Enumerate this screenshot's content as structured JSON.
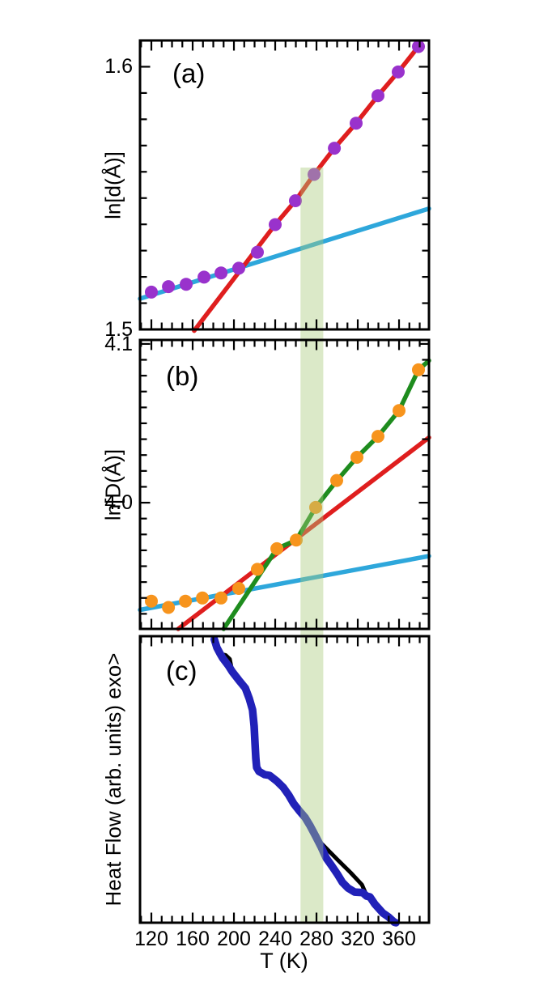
{
  "figure": {
    "xlabel": "T (K)",
    "xlim": [
      109,
      389
    ],
    "x_ticks": {
      "major_values": [
        120,
        160,
        200,
        240,
        280,
        320,
        360
      ],
      "labels": [
        "120",
        "160",
        "200",
        "240",
        "280",
        "320",
        "360"
      ],
      "minor_step": 10
    },
    "highlight_band": {
      "x_range": [
        264.5,
        286.5
      ],
      "color": "#AACB7C",
      "opacity": 0.42,
      "meaning": "transition temperature region highlighted across all panels"
    },
    "colors": {
      "purple_markers": "#9932CC",
      "orange_markers": "#F7941D",
      "red_fit": "#DF1E1E",
      "cyan_fit": "#2EA7DB",
      "green_fit": "#1E8C1E",
      "blue_curve": "#2121B8",
      "black_curve": "#000000",
      "axis": "#000000"
    }
  },
  "chart_data": [
    {
      "panel": "a",
      "panel_label": "(a)",
      "type": "scatter",
      "ylabel": "ln[d(Å)]",
      "xlabel": "T (K)",
      "xlim": [
        109,
        389
      ],
      "ylim": [
        1.5,
        1.61
      ],
      "yticks": {
        "major": [
          {
            "value": 1.5,
            "label": "1.5"
          },
          {
            "value": 1.6,
            "label": "1.6"
          }
        ],
        "minor_step": 0.01
      },
      "series": [
        {
          "name": "low-T-linear-fit",
          "type": "line",
          "color": "#2EA7DB",
          "width": 5.5,
          "points": [
            [
              109,
              1.5117
            ],
            [
              389,
              1.546
            ]
          ]
        },
        {
          "name": "high-T-linear-fit",
          "type": "line",
          "color": "#DF1E1E",
          "width": 5.5,
          "points": [
            [
              161.5,
              1.4995
            ],
            [
              240,
              1.5399
            ],
            [
              259.6,
              1.549
            ],
            [
              277.6,
              1.559
            ],
            [
              297.3,
              1.569
            ],
            [
              318.4,
              1.5785
            ],
            [
              339.6,
              1.589
            ],
            [
              359.2,
              1.598
            ],
            [
              381.5,
              1.609
            ]
          ]
        },
        {
          "name": "d-spacing-data",
          "type": "scatter",
          "color": "#9932CC",
          "marker_radius": 8,
          "points": [
            [
              120,
              1.5142
            ],
            [
              136.5,
              1.5163
            ],
            [
              153.7,
              1.5172
            ],
            [
              171,
              1.5199
            ],
            [
              187.5,
              1.5215
            ],
            [
              204.7,
              1.5233
            ],
            [
              222.7,
              1.5294
            ],
            [
              240,
              1.5399
            ],
            [
              259.6,
              1.549
            ],
            [
              277.6,
              1.559
            ],
            [
              297.3,
              1.569
            ],
            [
              318.4,
              1.5785
            ],
            [
              339.6,
              1.589
            ],
            [
              359.2,
              1.598
            ],
            [
              378.8,
              1.6077
            ]
          ]
        }
      ]
    },
    {
      "panel": "b",
      "panel_label": "(b)",
      "type": "scatter",
      "ylabel": "ln[D(Å)]",
      "xlabel": "T (K)",
      "xlim": [
        109,
        389
      ],
      "ylim": [
        3.9205,
        4.1025
      ],
      "yticks": {
        "major": [
          {
            "value": 4.0,
            "label": "4.0"
          },
          {
            "value": 4.1,
            "label": "4.1"
          }
        ],
        "minor_step": 0.01
      },
      "series": [
        {
          "name": "low-T-linear-fit",
          "type": "line",
          "color": "#2EA7DB",
          "width": 5.5,
          "points": [
            [
              109,
              3.9325
            ],
            [
              389,
              3.9664
            ]
          ]
        },
        {
          "name": "mid-T-linear-fit",
          "type": "line",
          "color": "#DF1E1E",
          "width": 5.5,
          "points": [
            [
              146,
              3.9205
            ],
            [
              389,
              4.041
            ]
          ]
        },
        {
          "name": "high-T-linear-fit",
          "type": "line",
          "color": "#1E8C1E",
          "width": 5.5,
          "points": [
            [
              190,
              3.9205
            ],
            [
              241.6,
              3.971
            ],
            [
              260.4,
              3.9765
            ],
            [
              279.2,
              3.997
            ],
            [
              299.6,
              4.0138
            ],
            [
              319.2,
              4.0286
            ],
            [
              339.6,
              4.0418
            ],
            [
              360,
              4.058
            ],
            [
              378.8,
              4.0837
            ],
            [
              389,
              4.0895
            ]
          ]
        },
        {
          "name": "D-size-data",
          "type": "scatter",
          "color": "#F7941D",
          "marker_radius": 8,
          "points": [
            [
              120,
              3.938
            ],
            [
              136.5,
              3.934
            ],
            [
              153,
              3.938
            ],
            [
              169.5,
              3.94
            ],
            [
              187.5,
              3.94
            ],
            [
              204.7,
              3.946
            ],
            [
              222.7,
              3.958
            ],
            [
              241.6,
              3.971
            ],
            [
              260.4,
              3.9765
            ],
            [
              279.2,
              3.997
            ],
            [
              299.6,
              4.014
            ],
            [
              319.2,
              4.0286
            ],
            [
              339.6,
              4.0418
            ],
            [
              360,
              4.058
            ],
            [
              378.8,
              4.0837
            ]
          ]
        }
      ]
    },
    {
      "panel": "c",
      "panel_label": "(c)",
      "type": "line",
      "ylabel": "Heat Flow (arb. units) exo>",
      "xlabel": "T (K)",
      "xlim": [
        109,
        389
      ],
      "ylim": [
        0,
        1
      ],
      "y_units": "arbitrary; values are fraction of panel height measured from top (exothermic up)",
      "yticks": null,
      "series": [
        {
          "name": "dsc-curve-black",
          "type": "line",
          "color": "#000000",
          "width": 5,
          "points": [
            [
              181,
              0.011
            ],
            [
              183.5,
              0.04
            ],
            [
              186.7,
              0.062
            ],
            [
              192,
              0.066
            ],
            [
              196,
              0.08
            ],
            [
              198.4,
              0.124
            ],
            [
              204.7,
              0.153
            ],
            [
              211,
              0.181
            ],
            [
              214.9,
              0.218
            ],
            [
              218,
              0.257
            ],
            [
              219.6,
              0.314
            ],
            [
              220.4,
              0.37
            ],
            [
              221.2,
              0.427
            ],
            [
              222,
              0.458
            ],
            [
              224.3,
              0.472
            ],
            [
              229.8,
              0.483
            ],
            [
              234.5,
              0.486
            ],
            [
              241.6,
              0.506
            ],
            [
              247.8,
              0.528
            ],
            [
              253.3,
              0.556
            ],
            [
              258,
              0.585
            ],
            [
              263.5,
              0.61
            ],
            [
              269,
              0.633
            ],
            [
              273.7,
              0.661
            ],
            [
              279.2,
              0.698
            ],
            [
              281.6,
              0.712
            ],
            [
              300.4,
              0.78
            ],
            [
              313,
              0.825
            ],
            [
              324,
              0.867
            ],
            [
              328.6,
              0.905
            ],
            [
              331.8,
              0.91
            ],
            [
              336.5,
              0.935
            ],
            [
              344.3,
              0.966
            ],
            [
              349.8,
              0.98
            ],
            [
              355.3,
              0.998
            ]
          ]
        },
        {
          "name": "dsc-curve-blue",
          "type": "line",
          "color": "#2121B8",
          "width": 9.5,
          "points": [
            [
              181,
              0.011
            ],
            [
              183.5,
              0.04
            ],
            [
              186.7,
              0.062
            ],
            [
              189,
              0.076
            ],
            [
              194.5,
              0.102
            ],
            [
              198.4,
              0.124
            ],
            [
              204.7,
              0.153
            ],
            [
              211,
              0.181
            ],
            [
              214.9,
              0.218
            ],
            [
              218,
              0.257
            ],
            [
              219.6,
              0.314
            ],
            [
              220.4,
              0.37
            ],
            [
              221.2,
              0.427
            ],
            [
              222,
              0.458
            ],
            [
              224.3,
              0.472
            ],
            [
              229.8,
              0.483
            ],
            [
              234.5,
              0.486
            ],
            [
              241.6,
              0.506
            ],
            [
              247.8,
              0.528
            ],
            [
              253.3,
              0.556
            ],
            [
              258,
              0.585
            ],
            [
              263.5,
              0.61
            ],
            [
              269,
              0.633
            ],
            [
              273.7,
              0.661
            ],
            [
              279.2,
              0.698
            ],
            [
              284.7,
              0.737
            ],
            [
              289.4,
              0.774
            ],
            [
              294.9,
              0.802
            ],
            [
              300.4,
              0.831
            ],
            [
              305.1,
              0.859
            ],
            [
              310.6,
              0.879
            ],
            [
              316.9,
              0.893
            ],
            [
              324.7,
              0.895
            ],
            [
              328.6,
              0.907
            ],
            [
              331.8,
              0.91
            ],
            [
              336.5,
              0.935
            ],
            [
              344.3,
              0.966
            ],
            [
              349.8,
              0.98
            ],
            [
              355.3,
              0.998
            ],
            [
              357,
              1.0
            ]
          ]
        }
      ]
    }
  ]
}
